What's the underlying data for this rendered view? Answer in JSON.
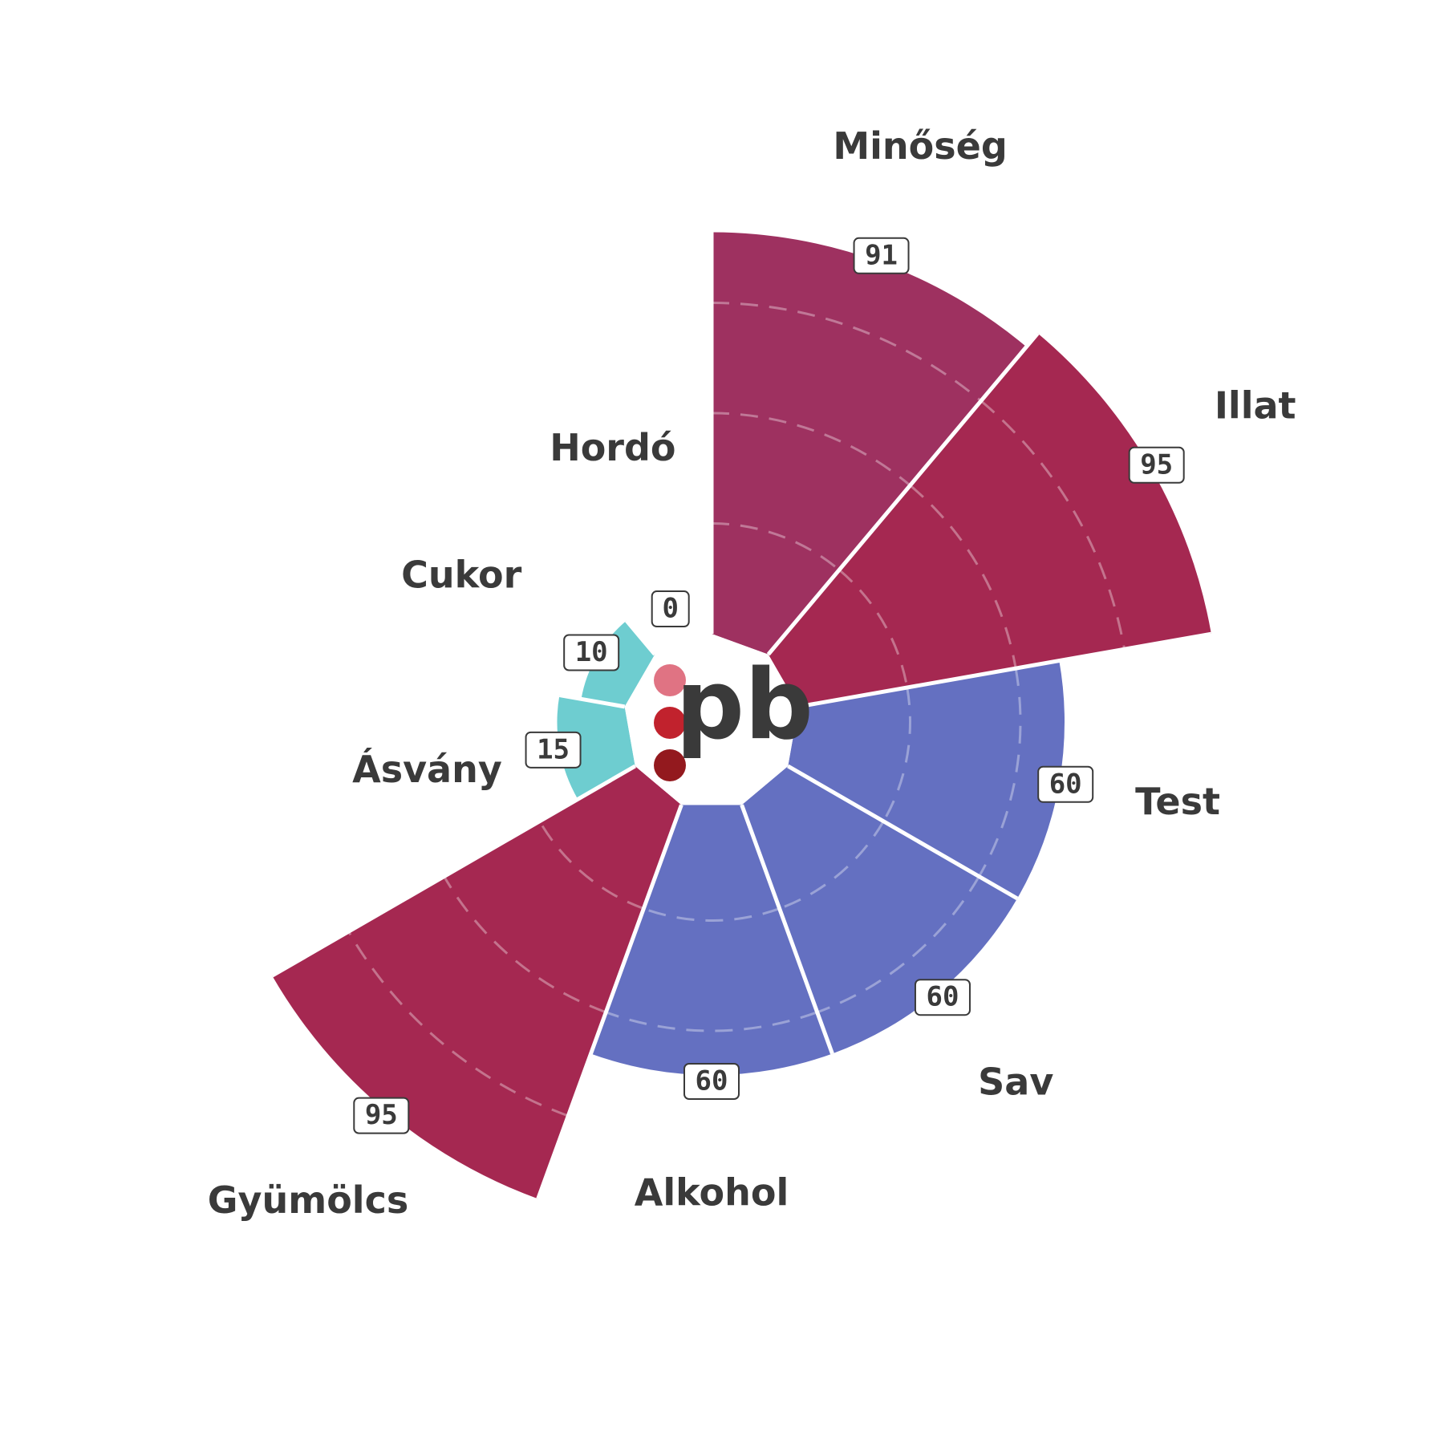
{
  "chart_data": {
    "type": "polar-area",
    "categories": [
      "Minőség",
      "Illat",
      "Test",
      "Sav",
      "Alkohol",
      "Gyümölcs",
      "Ásvány",
      "Cukor",
      "Hordó"
    ],
    "values": [
      91,
      95,
      60,
      60,
      60,
      95,
      15,
      10,
      0
    ],
    "colors": [
      "#9e3160",
      "#a52851",
      "#6470c1",
      "#6470c1",
      "#6470c1",
      "#a52851",
      "#6ecdd0",
      "#6ecdd0",
      "#9e3160"
    ],
    "rlim": [
      0,
      100
    ],
    "grid": true
  },
  "logo": {
    "text": "pb",
    "dot_colors": [
      "#e07383",
      "#c1222d",
      "#93191e"
    ]
  }
}
